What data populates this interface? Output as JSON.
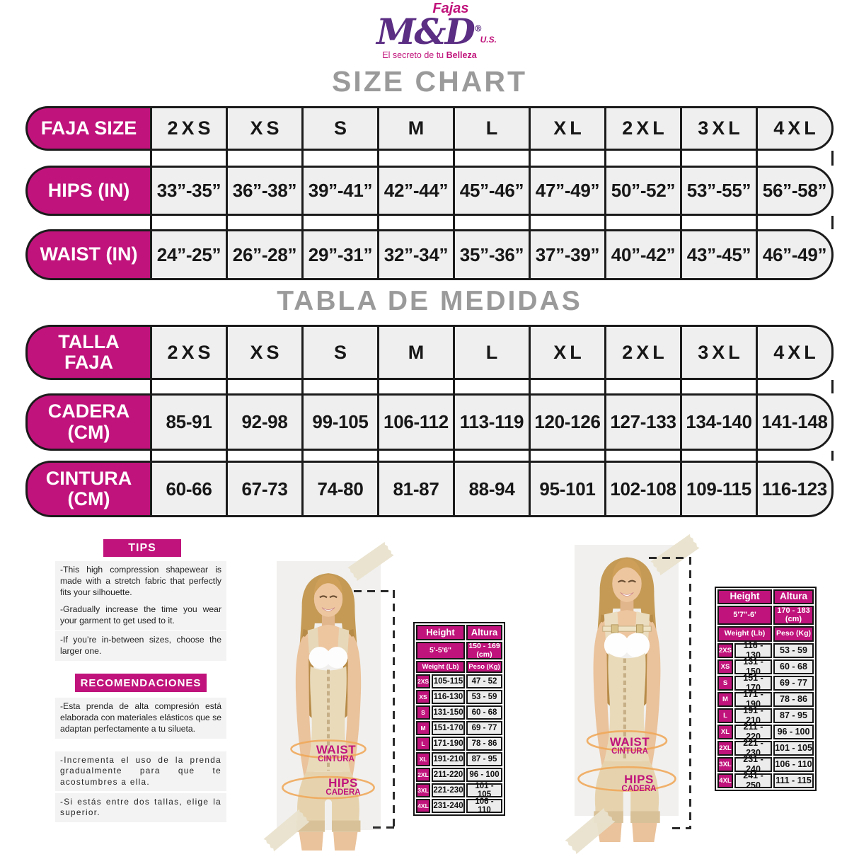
{
  "logo": {
    "fajas": "Fajas",
    "name": "M&D",
    "registered": "®",
    "us": "U.S.",
    "tagline_prefix": "El secreto de tu ",
    "tagline_bold": "Belleza"
  },
  "titles": {
    "size_chart": "SIZE CHART",
    "tabla_de_medidas": "TABLA DE MEDIDAS"
  },
  "size_table_en": {
    "rows": [
      {
        "label_line1": "FAJA SIZE",
        "label_line2": "",
        "cells": [
          "2XS",
          "XS",
          "S",
          "M",
          "L",
          "XL",
          "2XL",
          "3XL",
          "4XL"
        ]
      },
      {
        "label_line1": "HIPS (IN)",
        "label_line2": "",
        "cells": [
          "33”-35”",
          "36”-38”",
          "39”-41”",
          "42”-44”",
          "45”-46”",
          "47”-49”",
          "50”-52”",
          "53”-55”",
          "56”-58”"
        ]
      },
      {
        "label_line1": "WAIST (IN)",
        "label_line2": "",
        "cells": [
          "24”-25”",
          "26”-28”",
          "29”-31”",
          "32”-34”",
          "35”-36”",
          "37”-39”",
          "40”-42”",
          "43”-45”",
          "46”-49”"
        ]
      }
    ]
  },
  "size_table_es": {
    "rows": [
      {
        "label_line1": "TALLA",
        "label_line2": "FAJA",
        "cells": [
          "2XS",
          "XS",
          "S",
          "M",
          "L",
          "XL",
          "2XL",
          "3XL",
          "4XL"
        ]
      },
      {
        "label_line1": "CADERA",
        "label_line2": "(CM)",
        "cells": [
          "85-91",
          "92-98",
          "99-105",
          "106-112",
          "113-119",
          "120-126",
          "127-133",
          "134-140",
          "141-148"
        ]
      },
      {
        "label_line1": "CINTURA",
        "label_line2": "(CM)",
        "cells": [
          "60-66",
          "67-73",
          "74-80",
          "81-87",
          "88-94",
          "95-101",
          "102-108",
          "109-115",
          "116-123"
        ]
      }
    ]
  },
  "tips": {
    "title": "TIPS",
    "items": [
      "-This high compression shapewear is made with a stretch fabric that perfectly fits your silhouette.",
      "-Gradually increase the time you wear your garment to get used to it.",
      "-If you’re in-between sizes, choose the larger one."
    ]
  },
  "recommendations": {
    "title": "RECOMENDACIONES",
    "items": [
      "-Esta prenda de alta compresión está elaborada con materiales elásticos que se adaptan perfectamente a tu silueta.",
      "-Incrementa el uso de la prenda gradualmente para que te acostumbres a ella.",
      "-Si estás entre dos tallas, elige la superior."
    ]
  },
  "weight_tables": [
    {
      "height_label": "Height",
      "altura_label": "Altura",
      "height_value": "5'-5'6\"",
      "altura_value": "150 - 169 (cm)",
      "weight_label": "Weight (Lb)",
      "peso_label": "Peso (Kg)",
      "rows": [
        {
          "size": "2XS",
          "lb": "105-115",
          "kg": "47 - 52"
        },
        {
          "size": "XS",
          "lb": "116-130",
          "kg": "53 - 59"
        },
        {
          "size": "S",
          "lb": "131-150",
          "kg": "60 - 68"
        },
        {
          "size": "M",
          "lb": "151-170",
          "kg": "69 - 77"
        },
        {
          "size": "L",
          "lb": "171-190",
          "kg": "78 - 86"
        },
        {
          "size": "XL",
          "lb": "191-210",
          "kg": "87 - 95"
        },
        {
          "size": "2XL",
          "lb": "211-220",
          "kg": "96 - 100"
        },
        {
          "size": "3XL",
          "lb": "221-230",
          "kg": "101 - 105"
        },
        {
          "size": "4XL",
          "lb": "231-240",
          "kg": "106 - 110"
        }
      ]
    },
    {
      "height_label": "Height",
      "altura_label": "Altura",
      "height_value": "5'7\"-6'",
      "altura_value": "170 - 183 (cm)",
      "weight_label": "Weight (Lb)",
      "peso_label": "Peso (Kg)",
      "rows": [
        {
          "size": "2XS",
          "lb": "116 - 130",
          "kg": "53 - 59"
        },
        {
          "size": "XS",
          "lb": "131 - 150",
          "kg": "60 - 68"
        },
        {
          "size": "S",
          "lb": "151 - 170",
          "kg": "69 - 77"
        },
        {
          "size": "M",
          "lb": "171 - 190",
          "kg": "78 - 86"
        },
        {
          "size": "L",
          "lb": "191 - 210",
          "kg": "87 - 95"
        },
        {
          "size": "XL",
          "lb": "211 - 220",
          "kg": "96 - 100"
        },
        {
          "size": "2XL",
          "lb": "221 - 230",
          "kg": "101 - 105"
        },
        {
          "size": "3XL",
          "lb": "231 - 240",
          "kg": "106 - 110"
        },
        {
          "size": "4XL",
          "lb": "241 - 250",
          "kg": "111 - 115"
        }
      ]
    }
  ],
  "annotations": {
    "waist_en": "WAIST",
    "waist_es": "CINTURA",
    "hips_en": "HIPS",
    "hips_es": "CADERA"
  },
  "colors": {
    "magenta": "#C0137B",
    "purple": "#5B2D83",
    "title_gray": "#9A9A9A",
    "accent_orange": "#F0A95B"
  }
}
